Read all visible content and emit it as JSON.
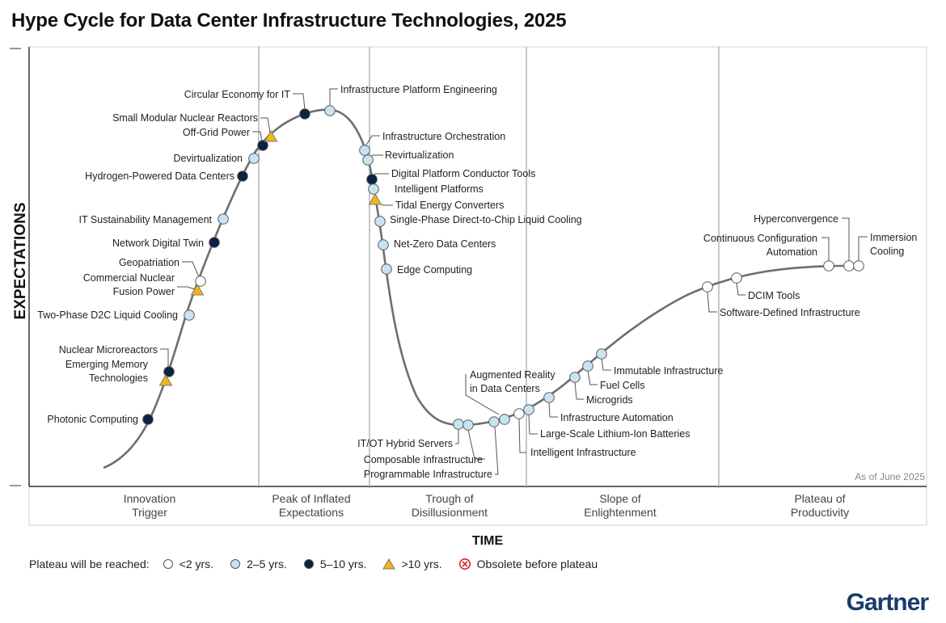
{
  "title": "Hype Cycle for Data Center Infrastructure Technologies, 2025",
  "brand": "Gartner",
  "chart_data": {
    "type": "scatter",
    "title": "Hype Cycle for Data Center Infrastructure Technologies, 2025",
    "xlabel": "TIME",
    "ylabel": "EXPECTATIONS",
    "note": "As of June 2025",
    "phases": [
      "Innovation\nTrigger",
      "Peak of Inflated\nExpectations",
      "Trough of\nDisillusionment",
      "Slope of\nEnlightenment",
      "Plateau of\nProductivity"
    ],
    "legend": {
      "title": "Plateau will be reached:",
      "items": [
        {
          "key": "lt2",
          "label": "<2 yrs."
        },
        {
          "key": "2to5",
          "label": "2–5 yrs."
        },
        {
          "key": "5to10",
          "label": "5–10 yrs."
        },
        {
          "key": "gt10",
          "label": ">10 yrs."
        },
        {
          "key": "obsolete",
          "label": "Obsolete before plateau"
        }
      ]
    },
    "colors": {
      "lt2": "#ffffff",
      "2to5": "#c7e4f3",
      "5to10": "#0b2240",
      "gt10": "#f2b418",
      "obsolete": "#d9262a",
      "curve": "#6e6e6e"
    },
    "technologies": [
      {
        "name": "Photonic Computing",
        "plateau": "5to10"
      },
      {
        "name": "Nuclear Microreactors",
        "plateau": "5to10"
      },
      {
        "name": "Emerging Memory\nTechnologies",
        "plateau": "gt10"
      },
      {
        "name": "Two-Phase D2C Liquid Cooling",
        "plateau": "2to5"
      },
      {
        "name": "Commercial Nuclear\nFusion Power",
        "plateau": "gt10"
      },
      {
        "name": "Geopatriation",
        "plateau": "lt2"
      },
      {
        "name": "Network Digital Twin",
        "plateau": "5to10"
      },
      {
        "name": "IT Sustainability Management",
        "plateau": "2to5"
      },
      {
        "name": "Hydrogen-Powered Data Centers",
        "plateau": "5to10"
      },
      {
        "name": "Devirtualization",
        "plateau": "2to5"
      },
      {
        "name": "Off-Grid Power",
        "plateau": "5to10"
      },
      {
        "name": "Small Modular Nuclear Reactors",
        "plateau": "gt10"
      },
      {
        "name": "Circular Economy for IT",
        "plateau": "5to10"
      },
      {
        "name": "Infrastructure Platform Engineering",
        "plateau": "2to5"
      },
      {
        "name": "Infrastructure Orchestration",
        "plateau": "2to5"
      },
      {
        "name": "Revirtualization",
        "plateau": "2to5"
      },
      {
        "name": "Digital Platform Conductor Tools",
        "plateau": "5to10"
      },
      {
        "name": "Intelligent Platforms",
        "plateau": "2to5"
      },
      {
        "name": "Tidal Energy Converters",
        "plateau": "gt10"
      },
      {
        "name": "Single-Phase Direct-to-Chip Liquid Cooling",
        "plateau": "2to5"
      },
      {
        "name": "Net-Zero Data Centers",
        "plateau": "2to5"
      },
      {
        "name": "Edge Computing",
        "plateau": "2to5"
      },
      {
        "name": "IT/OT Hybrid Servers",
        "plateau": "2to5"
      },
      {
        "name": "Composable Infrastructure",
        "plateau": "2to5"
      },
      {
        "name": "Programmable Infrastructure",
        "plateau": "2to5"
      },
      {
        "name": "Augmented Reality\nin Data Centers",
        "plateau": "2to5"
      },
      {
        "name": "Intelligent Infrastructure",
        "plateau": "lt2"
      },
      {
        "name": "Large-Scale Lithium-Ion Batteries",
        "plateau": "2to5"
      },
      {
        "name": "Infrastructure Automation",
        "plateau": "2to5"
      },
      {
        "name": "Microgrids",
        "plateau": "2to5"
      },
      {
        "name": "Fuel Cells",
        "plateau": "2to5"
      },
      {
        "name": "Immutable Infrastructure",
        "plateau": "2to5"
      },
      {
        "name": "Software-Defined Infrastructure",
        "plateau": "lt2"
      },
      {
        "name": "DCIM Tools",
        "plateau": "lt2"
      },
      {
        "name": "Continuous Configuration\nAutomation",
        "plateau": "lt2"
      },
      {
        "name": "Hyperconvergence",
        "plateau": "lt2"
      },
      {
        "name": "Immersion\nCooling",
        "plateau": "lt2"
      }
    ]
  }
}
